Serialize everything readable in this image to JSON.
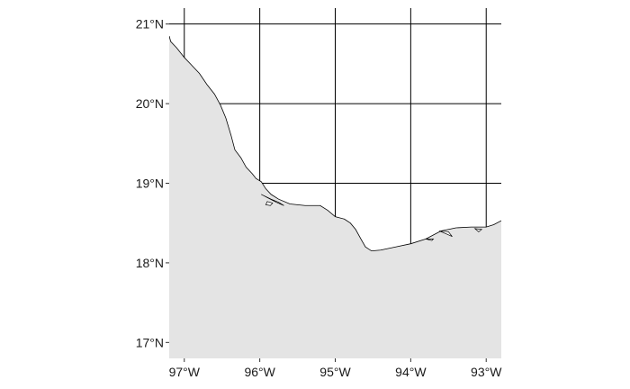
{
  "map": {
    "projection": "longitude-latitude",
    "xlim": [
      -97.2,
      -92.8
    ],
    "ylim": [
      16.8,
      21.2
    ],
    "colors": {
      "land": "#e4e4e4",
      "coastline": "#000000",
      "grid": "#000000",
      "background": "#ffffff"
    },
    "x_ticks": [
      {
        "value": -97,
        "label": "97°W"
      },
      {
        "value": -96,
        "label": "96°W"
      },
      {
        "value": -95,
        "label": "95°W"
      },
      {
        "value": -94,
        "label": "94°W"
      },
      {
        "value": -93,
        "label": "93°W"
      }
    ],
    "y_ticks": [
      {
        "value": 17,
        "label": "17°N"
      },
      {
        "value": 18,
        "label": "18°N"
      },
      {
        "value": 19,
        "label": "19°N"
      },
      {
        "value": 20,
        "label": "20°N"
      },
      {
        "value": 21,
        "label": "21°N"
      }
    ],
    "coastline": [
      [
        -97.2,
        20.85
      ],
      [
        -97.18,
        20.78
      ],
      [
        -97.1,
        20.7
      ],
      [
        -97.0,
        20.58
      ],
      [
        -96.9,
        20.48
      ],
      [
        -96.8,
        20.38
      ],
      [
        -96.7,
        20.24
      ],
      [
        -96.6,
        20.12
      ],
      [
        -96.52,
        19.98
      ],
      [
        -96.45,
        19.82
      ],
      [
        -96.38,
        19.6
      ],
      [
        -96.33,
        19.42
      ],
      [
        -96.25,
        19.32
      ],
      [
        -96.18,
        19.2
      ],
      [
        -96.1,
        19.12
      ],
      [
        -96.05,
        19.06
      ],
      [
        -95.98,
        19.02
      ],
      [
        -95.92,
        18.93
      ],
      [
        -95.85,
        18.86
      ],
      [
        -95.75,
        18.8
      ],
      [
        -95.6,
        18.74
      ],
      [
        -95.4,
        18.72
      ],
      [
        -95.2,
        18.72
      ],
      [
        -95.1,
        18.66
      ],
      [
        -95.0,
        18.58
      ],
      [
        -94.88,
        18.55
      ],
      [
        -94.8,
        18.5
      ],
      [
        -94.73,
        18.42
      ],
      [
        -94.66,
        18.3
      ],
      [
        -94.6,
        18.2
      ],
      [
        -94.52,
        18.15
      ],
      [
        -94.4,
        18.16
      ],
      [
        -94.2,
        18.2
      ],
      [
        -94.0,
        18.24
      ],
      [
        -93.8,
        18.3
      ],
      [
        -93.6,
        18.4
      ],
      [
        -93.4,
        18.44
      ],
      [
        -93.2,
        18.45
      ],
      [
        -93.0,
        18.45
      ],
      [
        -92.9,
        18.48
      ],
      [
        -92.8,
        18.53
      ]
    ],
    "lagoons": [
      [
        [
          -95.98,
          18.86
        ],
        [
          -95.85,
          18.8
        ],
        [
          -95.75,
          18.76
        ],
        [
          -95.68,
          18.72
        ],
        [
          -95.78,
          18.76
        ],
        [
          -95.9,
          18.82
        ]
      ],
      [
        [
          -95.9,
          18.77
        ],
        [
          -95.83,
          18.75
        ],
        [
          -95.86,
          18.72
        ],
        [
          -95.92,
          18.73
        ]
      ],
      [
        [
          -93.62,
          18.4
        ],
        [
          -93.52,
          18.36
        ],
        [
          -93.45,
          18.33
        ],
        [
          -93.5,
          18.39
        ]
      ],
      [
        [
          -93.8,
          18.3
        ],
        [
          -93.72,
          18.28
        ],
        [
          -93.7,
          18.3
        ]
      ],
      [
        [
          -93.15,
          18.43
        ],
        [
          -93.1,
          18.39
        ],
        [
          -93.06,
          18.42
        ]
      ]
    ]
  }
}
